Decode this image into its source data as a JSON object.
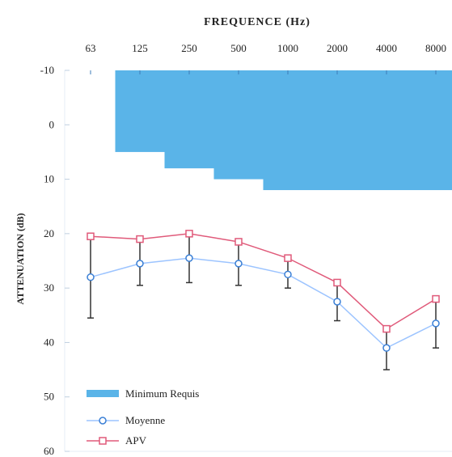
{
  "chart_data": {
    "type": "line",
    "title": "FREQUENCE (Hz)",
    "xlabel": "FREQUENCE (Hz)",
    "ylabel": "ATTENUATION (dB)",
    "categories": [
      "63",
      "125",
      "250",
      "500",
      "1000",
      "2000",
      "4000",
      "8000"
    ],
    "y_ticks": [
      "-10",
      "0",
      "10",
      "20",
      "30",
      "40",
      "50",
      "60"
    ],
    "ylim": [
      -10,
      60
    ],
    "y_inverted": true,
    "grid": false,
    "legend_position": "bottom-left",
    "minimum_requis": {
      "name": "Minimum Requis",
      "color": "#5ab4e8",
      "values": [
        null,
        5,
        8,
        10,
        12,
        12,
        12,
        12
      ]
    },
    "series": [
      {
        "name": "Moyenne",
        "color": "#9cc4ff",
        "marker_color": "#3a7fd5",
        "values": [
          28,
          25.5,
          24.5,
          25.5,
          27.5,
          32.5,
          41,
          36.5
        ],
        "error_low": [
          20.5,
          21,
          20,
          21.5,
          24.5,
          29,
          37.5,
          32
        ],
        "error_high": [
          35.5,
          29.5,
          29,
          29.5,
          30,
          36,
          45,
          41
        ]
      },
      {
        "name": "APV",
        "color": "#e05a7a",
        "values": [
          20.5,
          21,
          20,
          21.5,
          24.5,
          29,
          37.5,
          32
        ]
      }
    ]
  }
}
